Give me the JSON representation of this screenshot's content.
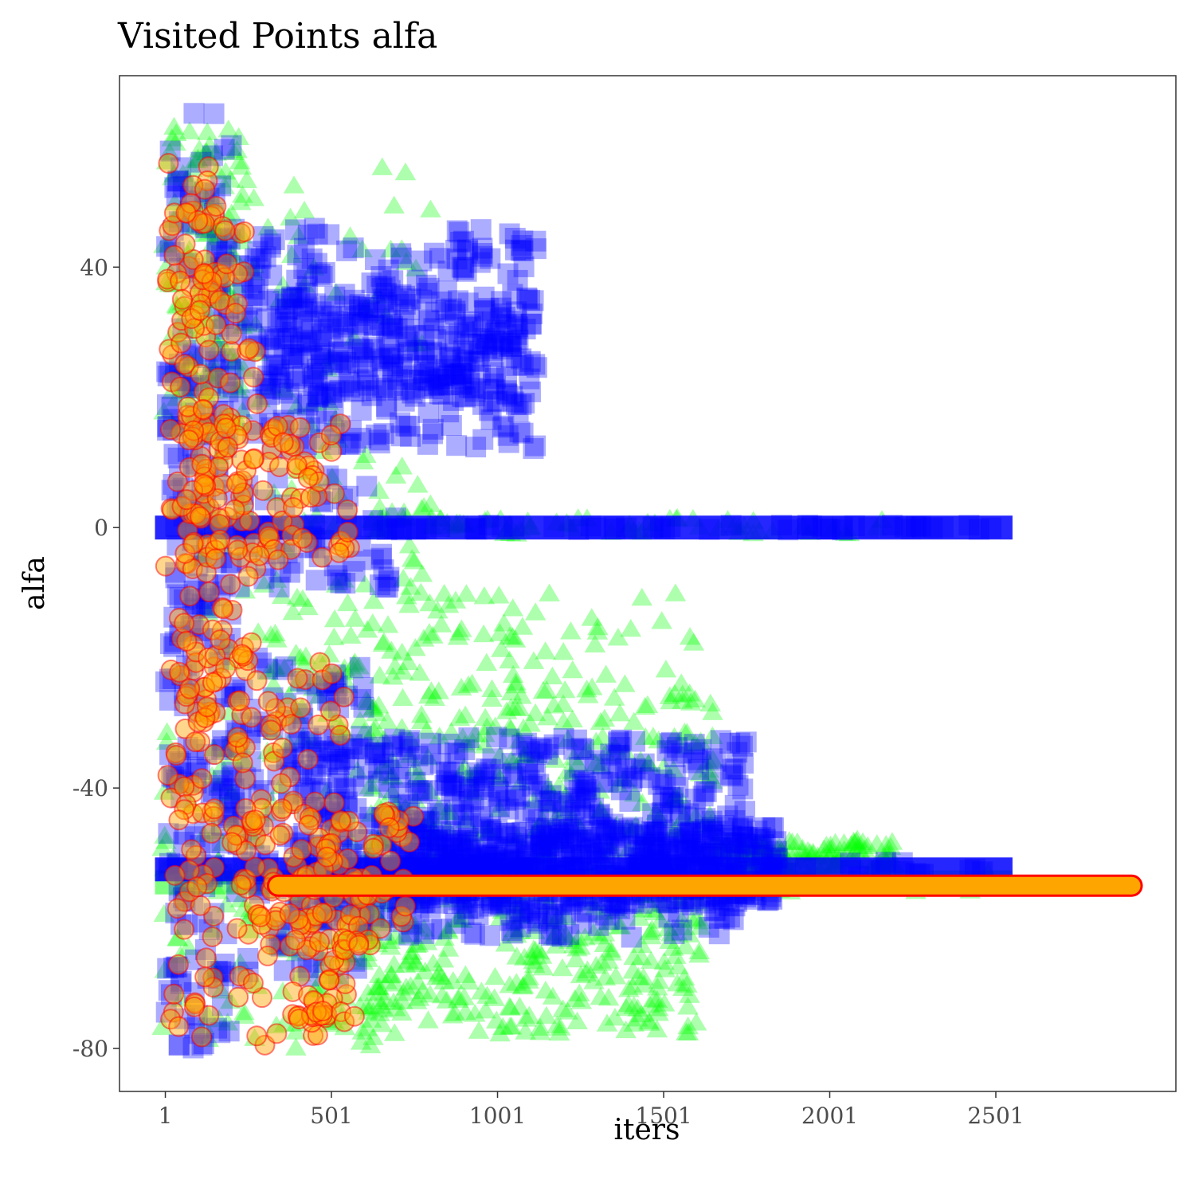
{
  "chart_data": {
    "type": "scatter",
    "title": "Visited Points alfa",
    "xlabel": "iters",
    "ylabel": "alfa",
    "xlim": [
      -137,
      3043
    ],
    "ylim": [
      -86.6,
      69.4
    ],
    "x_ticks": [
      1,
      501,
      1001,
      1501,
      2001,
      2501
    ],
    "x_tick_labels": [
      "1",
      "501",
      "1001",
      "1501",
      "2001",
      "2501"
    ],
    "y_ticks": [
      40,
      0,
      -40,
      -80
    ],
    "y_tick_labels": [
      "40",
      "0",
      "-40",
      "-80"
    ],
    "grid": false,
    "legend": "none",
    "colors": {
      "green_series": "#00ff00",
      "blue_series": "#0000ff",
      "orange_fill": "#ffa500",
      "orange_stroke": "#ff0000",
      "tick_text": "#4d4d4d",
      "panel_border": "#333333"
    },
    "series": [
      {
        "marker": "triangle",
        "color": "#00ff00",
        "clusters": [
          {
            "x": [
              -10,
              240
            ],
            "y": [
              15,
              62
            ],
            "n": 140
          },
          {
            "x": [
              100,
              800
            ],
            "y": [
              -30,
              56
            ],
            "n": 140
          },
          {
            "x": [
              -10,
              700
            ],
            "y": [
              -80,
              -30
            ],
            "n": 160
          },
          {
            "x": [
              300,
              1600
            ],
            "y": [
              -30,
              -10
            ],
            "n": 120
          },
          {
            "x": [
              500,
              1620
            ],
            "y": [
              -78,
              -55
            ],
            "n": 300
          },
          {
            "x": [
              600,
              1650
            ],
            "y": [
              -55,
              -25
            ],
            "n": 220
          },
          {
            "x": [
              1650,
              2200
            ],
            "y": [
              -53,
              -48
            ],
            "n": 140
          },
          {
            "x": [
              600,
              2200
            ],
            "y": [
              -1,
              1.5
            ],
            "n": 70
          }
        ],
        "bands": [
          {
            "x_start": 1,
            "x_end": 2520,
            "y": -54.5,
            "jitter": 1.5
          }
        ]
      },
      {
        "marker": "square",
        "color": "#0000ff",
        "clusters": [
          {
            "x": [
              1,
              200
            ],
            "y": [
              -80,
              64
            ],
            "n": 260
          },
          {
            "x": [
              150,
              1120
            ],
            "y": [
              12,
              46
            ],
            "n": 320
          },
          {
            "x": [
              300,
              1100
            ],
            "y": [
              20,
              36
            ],
            "n": 200
          },
          {
            "x": [
              200,
              600
            ],
            "y": [
              -70,
              -20
            ],
            "n": 150
          },
          {
            "x": [
              400,
              1750
            ],
            "y": [
              -63,
              -32
            ],
            "n": 620
          },
          {
            "x": [
              700,
              1850
            ],
            "y": [
              -58,
              -46
            ],
            "n": 400
          },
          {
            "x": [
              200,
              700
            ],
            "y": [
              -10,
              8
            ],
            "n": 60
          }
        ],
        "bands": [
          {
            "x_start": 1,
            "x_end": 2520,
            "y": 0,
            "jitter": 0.4
          },
          {
            "x_start": 1,
            "x_end": 2520,
            "y": -52.5,
            "jitter": 1.2
          }
        ]
      },
      {
        "marker": "circle",
        "color": "#ffa500",
        "stroke": "#ff0000",
        "clusters": [
          {
            "x": [
              1,
              150
            ],
            "y": [
              -80,
              57
            ],
            "n": 140
          },
          {
            "x": [
              40,
              280
            ],
            "y": [
              -30,
              50
            ],
            "n": 110
          },
          {
            "x": [
              200,
              550
            ],
            "y": [
              -80,
              -20
            ],
            "n": 110
          },
          {
            "x": [
              200,
              750
            ],
            "y": [
              -62,
              -42
            ],
            "n": 90
          },
          {
            "x": [
              50,
              560
            ],
            "y": [
              -5,
              16
            ],
            "n": 90
          },
          {
            "x": [
              380,
              580
            ],
            "y": [
              -76,
              -74
            ],
            "n": 12
          },
          {
            "x": [
              380,
              650
            ],
            "y": [
              -65,
              -63
            ],
            "n": 14
          }
        ],
        "bands": [
          {
            "x_start": 340,
            "x_end": 2910,
            "y": -55,
            "jitter": 0
          }
        ]
      }
    ]
  }
}
